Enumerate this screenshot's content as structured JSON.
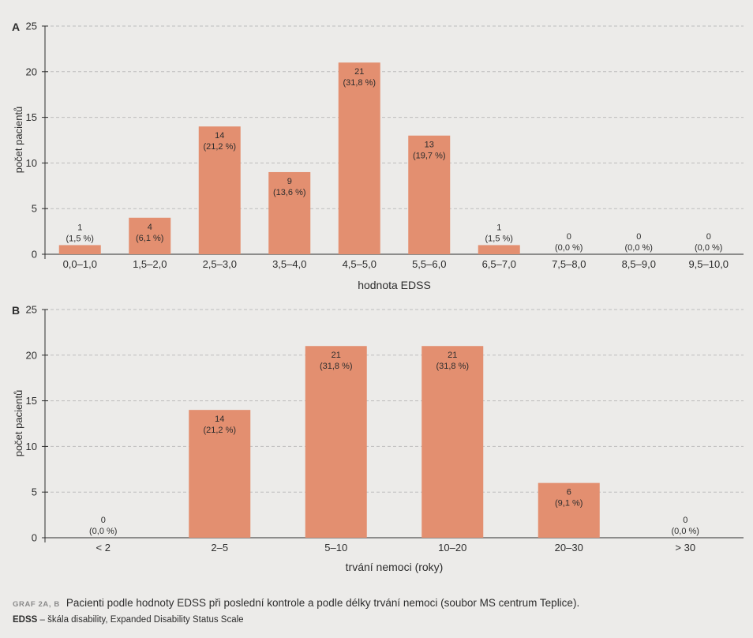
{
  "chart_data": [
    {
      "type": "bar",
      "panel_label": "A",
      "categories": [
        "0,0–1,0",
        "1,5–2,0",
        "2,5–3,0",
        "3,5–4,0",
        "4,5–5,0",
        "5,5–6,0",
        "6,5–7,0",
        "7,5–8,0",
        "8,5–9,0",
        "9,5–10,0"
      ],
      "values": [
        1,
        4,
        14,
        9,
        21,
        13,
        1,
        0,
        0,
        0
      ],
      "percent_labels": [
        "(1,5 %)",
        "(6,1 %)",
        "(21,2 %)",
        "(13,6 %)",
        "(31,8 %)",
        "(19,7 %)",
        "(1,5 %)",
        "(0,0 %)",
        "(0,0 %)",
        "(0,0 %)"
      ],
      "xlabel": "hodnota EDSS",
      "ylabel": "počet pacientů",
      "ylim": [
        0,
        25
      ],
      "yticks": [
        0,
        5,
        10,
        15,
        20,
        25
      ],
      "grid": "horizontal dashed",
      "bar_color": "#e38f70"
    },
    {
      "type": "bar",
      "panel_label": "B",
      "categories": [
        "< 2",
        "2–5",
        "5–10",
        "10–20",
        "20–30",
        "> 30"
      ],
      "values": [
        0,
        14,
        21,
        21,
        6,
        0
      ],
      "percent_labels": [
        "(0,0 %)",
        "(21,2 %)",
        "(31,8 %)",
        "(31,8 %)",
        "(9,1 %)",
        "(0,0 %)"
      ],
      "xlabel": "trvání nemoci (roky)",
      "ylabel": "počet pacientů",
      "ylim": [
        0,
        25
      ],
      "yticks": [
        0,
        5,
        10,
        15,
        20,
        25
      ],
      "grid": "horizontal dashed",
      "bar_color": "#e38f70"
    }
  ],
  "caption": {
    "label": "GRAF 2A, B",
    "text": "Pacienti podle hodnoty EDSS při poslední kontrole a podle délky trvání nemoci (soubor MS centrum Teplice)."
  },
  "footnote": {
    "abbr": "EDSS",
    "text": " – škála disability, Expanded Disability Status Scale"
  }
}
